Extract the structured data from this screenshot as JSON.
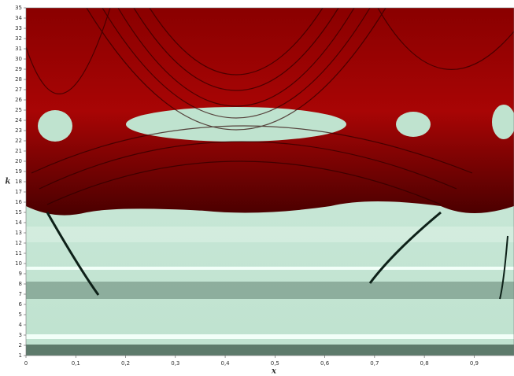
{
  "chart_data": {
    "type": "heatmap",
    "x_label": "x",
    "y_label": "k",
    "xlim": [
      0,
      0.98
    ],
    "ylim": [
      1,
      35
    ],
    "xticks": [
      0,
      {
        "value": 0.1,
        "label": "0,1"
      },
      {
        "value": 0.2,
        "label": "0,2"
      },
      {
        "value": 0.3,
        "label": "0,3"
      },
      {
        "value": 0.4,
        "label": "0,4"
      },
      {
        "value": 0.5,
        "label": "0,5"
      },
      {
        "value": 0.6,
        "label": "0,6"
      },
      {
        "value": 0.7,
        "label": "0,7"
      },
      {
        "value": 0.8,
        "label": "0,8"
      },
      {
        "value": 0.9,
        "label": "0,9"
      }
    ],
    "yticks": [
      1,
      2,
      3,
      4,
      5,
      6,
      7,
      8,
      9,
      10,
      11,
      12,
      13,
      14,
      15,
      16,
      17,
      18,
      19,
      20,
      21,
      22,
      23,
      24,
      25,
      26,
      27,
      28,
      29,
      30,
      31,
      32,
      33,
      34,
      35
    ]
  }
}
